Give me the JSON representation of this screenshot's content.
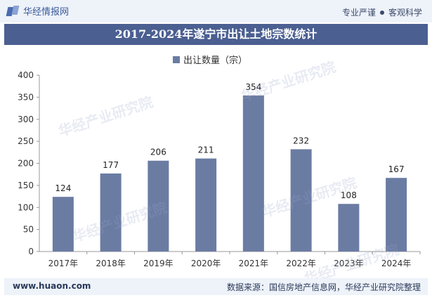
{
  "header": {
    "brand": "华经情报网",
    "slogan_left": "专业严谨",
    "slogan_right": "客观科学"
  },
  "watermark": "华经产业研究院",
  "colors": {
    "bar": "#6b7ca3",
    "title_bg": "#4b5f91",
    "header_bg": "#eef2f9"
  },
  "chart_data": {
    "type": "bar",
    "title": "2017-2024年遂宁市出让土地宗数统计",
    "categories": [
      "2017年",
      "2018年",
      "2019年",
      "2020年",
      "2021年",
      "2022年",
      "2023年",
      "2024年"
    ],
    "series": [
      {
        "name": "出让数量（宗）",
        "values": [
          124,
          177,
          206,
          211,
          354,
          232,
          108,
          167
        ]
      }
    ],
    "ylim": [
      0,
      400
    ],
    "yticks": [
      0,
      50,
      100,
      150,
      200,
      250,
      300,
      350,
      400
    ],
    "xlabel": "",
    "ylabel": "",
    "legend": "top-center",
    "grid": false
  },
  "footer": {
    "url": "www.huaon.com",
    "source": "数据来源：国信房地产信息网，华经产业研究院整理"
  }
}
